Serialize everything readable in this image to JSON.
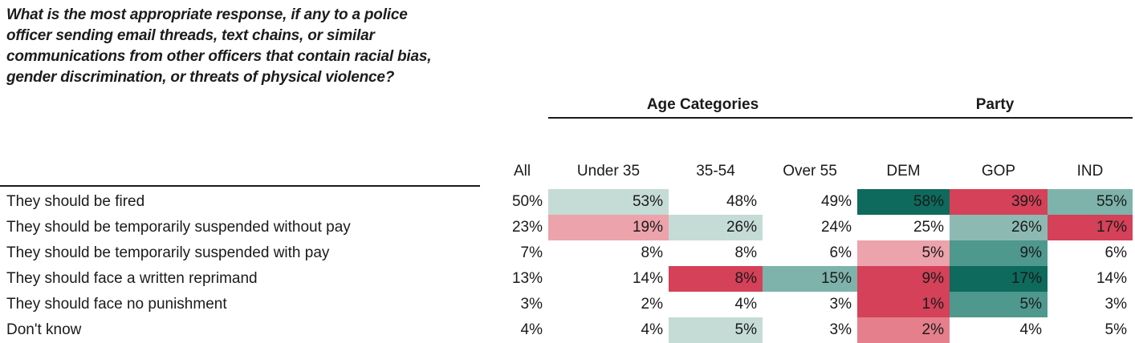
{
  "question": "What is the most appropriate response, if any to a police officer sending email threads, text chains, or similar communications from other officers that contain racial bias, gender discrimination, or threats of physical violence?",
  "colors": {
    "teal_dark": "#0d6a5d",
    "teal_medium_dark": "#4f988e",
    "teal_medium": "#7db3ab",
    "teal_light_medium": "#8cbab2",
    "teal_light": "#c5dbd6",
    "red": "#d44158",
    "pink_medium": "#e57f8b",
    "pink_light": "#eca3ab",
    "rule_line": "#1a1a1a",
    "text": "#1a1a1a"
  },
  "table": {
    "group_headers": [
      {
        "label": "Age Categories"
      },
      {
        "label": "Party"
      }
    ],
    "columns": [
      "All",
      "Under 35",
      "35-54",
      "Over 55",
      "DEM",
      "GOP",
      "IND"
    ],
    "rows": [
      {
        "label": "They should be fired",
        "cells": [
          {
            "value": "50%",
            "bg": null
          },
          {
            "value": "53%",
            "bg": "#c5dbd6"
          },
          {
            "value": "48%",
            "bg": null
          },
          {
            "value": "49%",
            "bg": null
          },
          {
            "value": "58%",
            "bg": "#0d6a5d"
          },
          {
            "value": "39%",
            "bg": "#d44158"
          },
          {
            "value": "55%",
            "bg": "#7db3ab"
          }
        ]
      },
      {
        "label": "They should be temporarily suspended without pay",
        "cells": [
          {
            "value": "23%",
            "bg": null
          },
          {
            "value": "19%",
            "bg": "#eca3ab"
          },
          {
            "value": "26%",
            "bg": "#c5dbd6"
          },
          {
            "value": "24%",
            "bg": null
          },
          {
            "value": "25%",
            "bg": null
          },
          {
            "value": "26%",
            "bg": "#8cbab2"
          },
          {
            "value": "17%",
            "bg": "#d44158"
          }
        ]
      },
      {
        "label": "They should be temporarily suspended with pay",
        "cells": [
          {
            "value": "7%",
            "bg": null
          },
          {
            "value": "8%",
            "bg": null
          },
          {
            "value": "8%",
            "bg": null
          },
          {
            "value": "6%",
            "bg": null
          },
          {
            "value": "5%",
            "bg": "#eca3ab"
          },
          {
            "value": "9%",
            "bg": "#4f988e"
          },
          {
            "value": "6%",
            "bg": null
          }
        ]
      },
      {
        "label": "They should face a written reprimand",
        "cells": [
          {
            "value": "13%",
            "bg": null
          },
          {
            "value": "14%",
            "bg": null
          },
          {
            "value": "8%",
            "bg": "#d44158"
          },
          {
            "value": "15%",
            "bg": "#7db3ab"
          },
          {
            "value": "9%",
            "bg": "#d44158"
          },
          {
            "value": "17%",
            "bg": "#0d6a5d"
          },
          {
            "value": "14%",
            "bg": null
          }
        ]
      },
      {
        "label": "They should face no punishment",
        "cells": [
          {
            "value": "3%",
            "bg": null
          },
          {
            "value": "2%",
            "bg": null
          },
          {
            "value": "4%",
            "bg": null
          },
          {
            "value": "3%",
            "bg": null
          },
          {
            "value": "1%",
            "bg": "#d44158"
          },
          {
            "value": "5%",
            "bg": "#4f988e"
          },
          {
            "value": "3%",
            "bg": null
          }
        ]
      },
      {
        "label": "Don't know",
        "cells": [
          {
            "value": "4%",
            "bg": null
          },
          {
            "value": "4%",
            "bg": null
          },
          {
            "value": "5%",
            "bg": "#c5dbd6"
          },
          {
            "value": "3%",
            "bg": null
          },
          {
            "value": "2%",
            "bg": "#e57f8b"
          },
          {
            "value": "4%",
            "bg": null
          },
          {
            "value": "5%",
            "bg": null
          }
        ]
      }
    ]
  },
  "chart_data": {
    "type": "heatmap",
    "title": "What is the most appropriate response, if any to a police officer sending email threads, text chains, or similar communications from other officers that contain racial bias, gender discrimination, or threats of physical violence?",
    "columns": [
      "All",
      "Under 35",
      "35-54",
      "Over 55",
      "DEM",
      "GOP",
      "IND"
    ],
    "column_groups": [
      {
        "label": "Age Categories",
        "columns": [
          "Under 35",
          "35-54",
          "Over 55"
        ]
      },
      {
        "label": "Party",
        "columns": [
          "DEM",
          "GOP",
          "IND"
        ]
      }
    ],
    "rows": [
      "They should be fired",
      "They should be temporarily suspended without pay",
      "They should be temporarily suspended with pay",
      "They should face a written reprimand",
      "They should face no punishment",
      "Don't know"
    ],
    "values_percent": [
      [
        50,
        53,
        48,
        49,
        58,
        39,
        55
      ],
      [
        23,
        19,
        26,
        24,
        25,
        26,
        17
      ],
      [
        7,
        8,
        8,
        6,
        5,
        9,
        6
      ],
      [
        13,
        14,
        8,
        15,
        9,
        17,
        14
      ],
      [
        3,
        2,
        4,
        3,
        1,
        5,
        3
      ],
      [
        4,
        4,
        5,
        3,
        2,
        4,
        5
      ]
    ],
    "legend_note": "teal shades = higher than overall, red/pink shades = lower than overall",
    "grid": false,
    "legend_position": "none"
  }
}
